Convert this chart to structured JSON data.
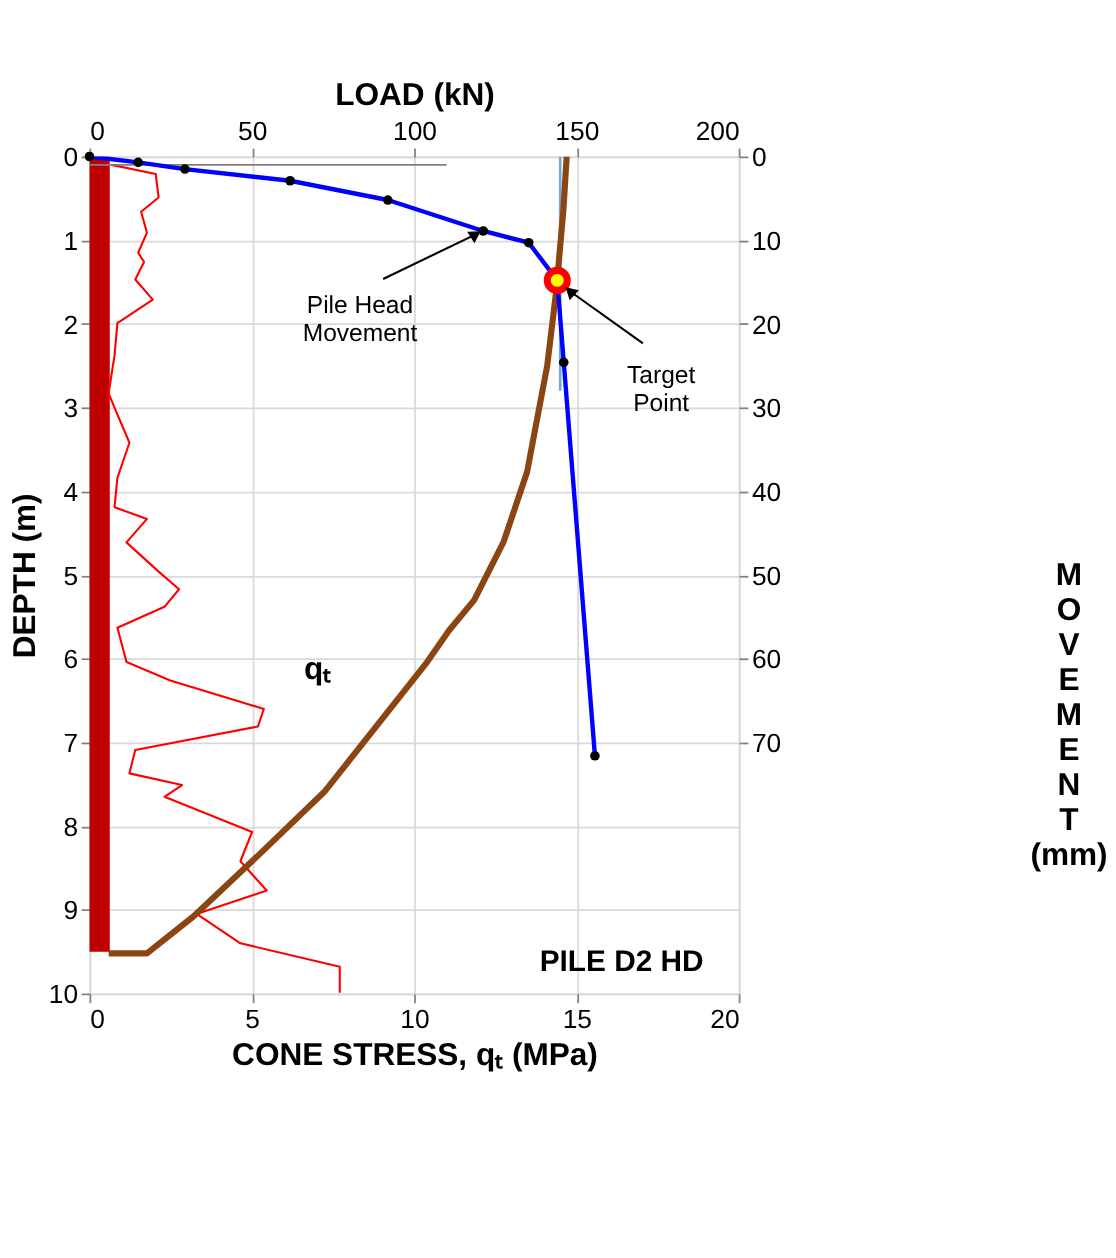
{
  "chart_data": {
    "type": "line",
    "xlabel": "LOAD  (kN)",
    "ylabel": "DEPTH  (m)",
    "x2label": "CONE STRESS, qₜ  (MPa)",
    "y2label": "MOVEMENT (mm)",
    "xlim": [
      0,
      200
    ],
    "xticks": [
      0,
      50,
      100,
      150,
      200
    ],
    "ylim": [
      10,
      0
    ],
    "yticks": [
      0,
      1,
      2,
      3,
      4,
      5,
      6,
      7,
      8,
      9,
      10
    ],
    "x2lim": [
      0,
      20
    ],
    "x2ticks": [
      0,
      5,
      10,
      15,
      20
    ],
    "y2lim": [
      100,
      0
    ],
    "y2ticks": [
      0,
      10,
      20,
      30,
      40,
      50,
      60,
      70
    ],
    "grid": true,
    "annotations": [
      {
        "text": "Pile Head Movement",
        "x": 119,
        "y": 0.93
      },
      {
        "text": "Target Point",
        "x": 148,
        "y": 1.61
      },
      "PILE  D2 HD",
      "qₜ"
    ],
    "series": [
      {
        "color": "#c00000",
        "axis": "x2",
        "x": [
          0.3,
          0.3
        ],
        "values": [
          0,
          9.5
        ]
      },
      {
        "color": "#ff0000",
        "axis": "x2",
        "x": [
          0.68,
          2.04,
          2.13,
          1.59,
          1.77,
          1.5,
          1.68,
          1.41,
          1.95,
          0.86,
          0.77,
          0.59,
          0.77,
          1.23,
          0.86,
          0.77,
          1.77,
          1.14,
          2.13,
          2.76,
          2.31,
          0.86,
          1.14,
          2.49,
          5.37,
          5.19,
          1.41,
          1.23,
          2.85,
          2.31,
          5.01,
          4.65,
          5.46,
          3.3,
          4.65,
          7.71,
          7.71
        ],
        "values": [
          0.1,
          0.21,
          0.49,
          0.66,
          0.91,
          1.15,
          1.26,
          1.47,
          1.71,
          1.99,
          2.38,
          2.83,
          3.0,
          3.42,
          3.84,
          4.19,
          4.33,
          4.61,
          4.96,
          5.17,
          5.38,
          5.63,
          6.04,
          6.26,
          6.6,
          6.81,
          7.09,
          7.37,
          7.51,
          7.65,
          8.07,
          8.42,
          8.77,
          9.05,
          9.4,
          9.68,
          9.99
        ]
      },
      {
        "color": "#808080",
        "x": [
          0,
          110
        ],
        "values": [
          0.1,
          0.1
        ]
      },
      {
        "color": "#6fa8dc",
        "x": [
          145,
          145
        ],
        "values": [
          0,
          2.8
        ]
      },
      {
        "color": "#8b4513",
        "x": [
          147,
          146,
          143.8,
          141,
          134.8,
          127.6,
          118.5,
          110.8,
          104,
          72.6,
          52.8,
          32,
          17.7,
          5.9
        ],
        "values": [
          0,
          0.63,
          1.6,
          2.5,
          3.77,
          4.6,
          5.3,
          5.66,
          6.04,
          7.58,
          8.32,
          9.08,
          9.52,
          9.52
        ]
      },
      {
        "color": "#0000ff",
        "axis": "y2",
        "marker": "circle",
        "x": [
          0,
          15,
          29.4,
          61.8,
          91.9,
          121.3,
          135.3,
          144.1,
          146.1,
          155.7
        ],
        "values": [
          0,
          0.7,
          1.5,
          2.9,
          5.2,
          8.9,
          10.3,
          14.8,
          24.6,
          71.6
        ]
      },
      {
        "type": "scatter",
        "color": "#ff0000",
        "axis": "y2",
        "x": [
          144.1
        ],
        "values": [
          14.8
        ]
      }
    ]
  }
}
